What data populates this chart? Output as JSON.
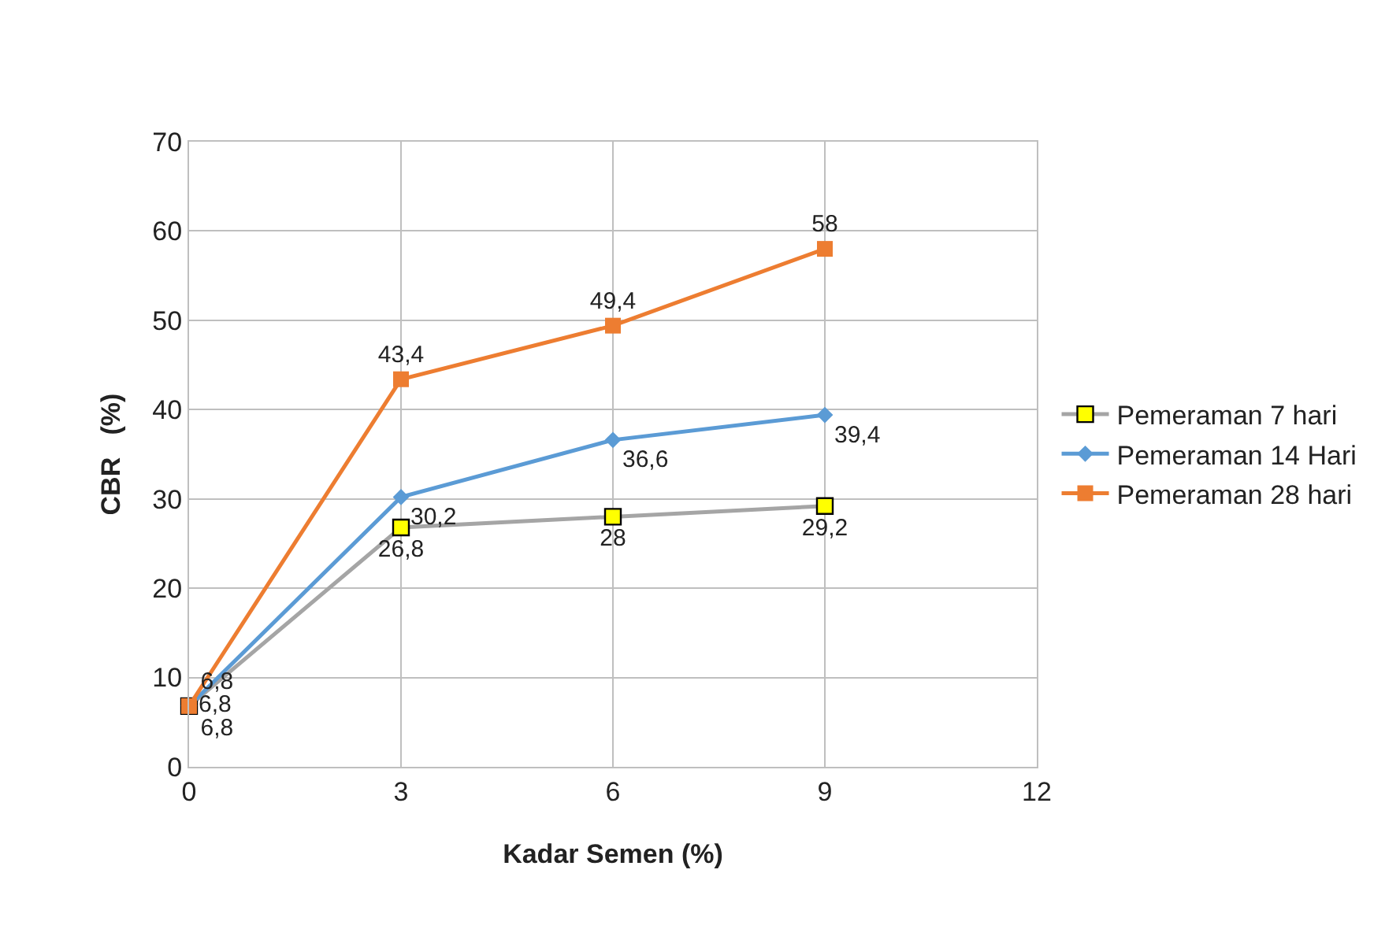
{
  "chart_data": {
    "type": "line",
    "xlabel": "Kadar Semen (%)",
    "ylabel": "CBR   (%)",
    "x": [
      0,
      3,
      6,
      9
    ],
    "series": [
      {
        "name": "Pemeraman 7 hari",
        "color": "#a5a5a5",
        "colors": [
          "#ffff00",
          "#ffff00",
          "#ffff00",
          "#ffff00"
        ],
        "marker": "square",
        "values": [
          6.8,
          26.8,
          28,
          29.2
        ],
        "value_labels": [
          "6,8",
          "26,8",
          "28",
          "29,2"
        ]
      },
      {
        "name": "Pemeraman 14 Hari",
        "color": "#5b9bd5",
        "marker": "diamond",
        "values": [
          6.8,
          30.2,
          36.6,
          39.4
        ],
        "value_labels": [
          "6,8",
          "30,2",
          "36,6",
          "39,4"
        ]
      },
      {
        "name": "Pemeraman 28 hari",
        "color": "#ed7d31",
        "marker": "square",
        "values": [
          6.8,
          43.4,
          49.4,
          58
        ],
        "value_labels": [
          "6,8",
          "43,4",
          "49,4",
          "58"
        ]
      }
    ],
    "xlim": [
      0,
      12
    ],
    "xticks": [
      0,
      3,
      6,
      9,
      12
    ],
    "ylim": [
      0,
      70
    ],
    "yticks": [
      0,
      10,
      20,
      30,
      40,
      50,
      60,
      70
    ],
    "grid": true,
    "legend": "right",
    "line_style": "solid"
  }
}
